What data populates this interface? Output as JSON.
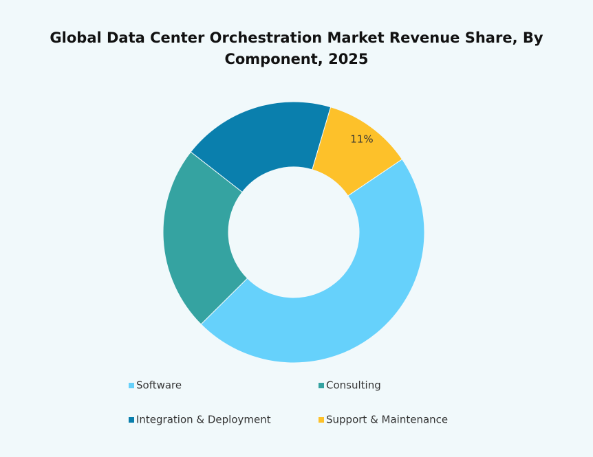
{
  "chart_data": {
    "type": "donut",
    "title": "Global Data Center Orchestration  Market Revenue Share, By Component, 2025",
    "categories": [
      "Software",
      "Consulting",
      "Integration & Deployment",
      "Support & Maintenance"
    ],
    "values": [
      47,
      23,
      19,
      11
    ],
    "value_labels": [
      null,
      null,
      null,
      "11%"
    ],
    "colors": [
      "#66d1fb",
      "#35a3a1",
      "#0a7fad",
      "#fdc12a"
    ],
    "legend": "bottom"
  }
}
